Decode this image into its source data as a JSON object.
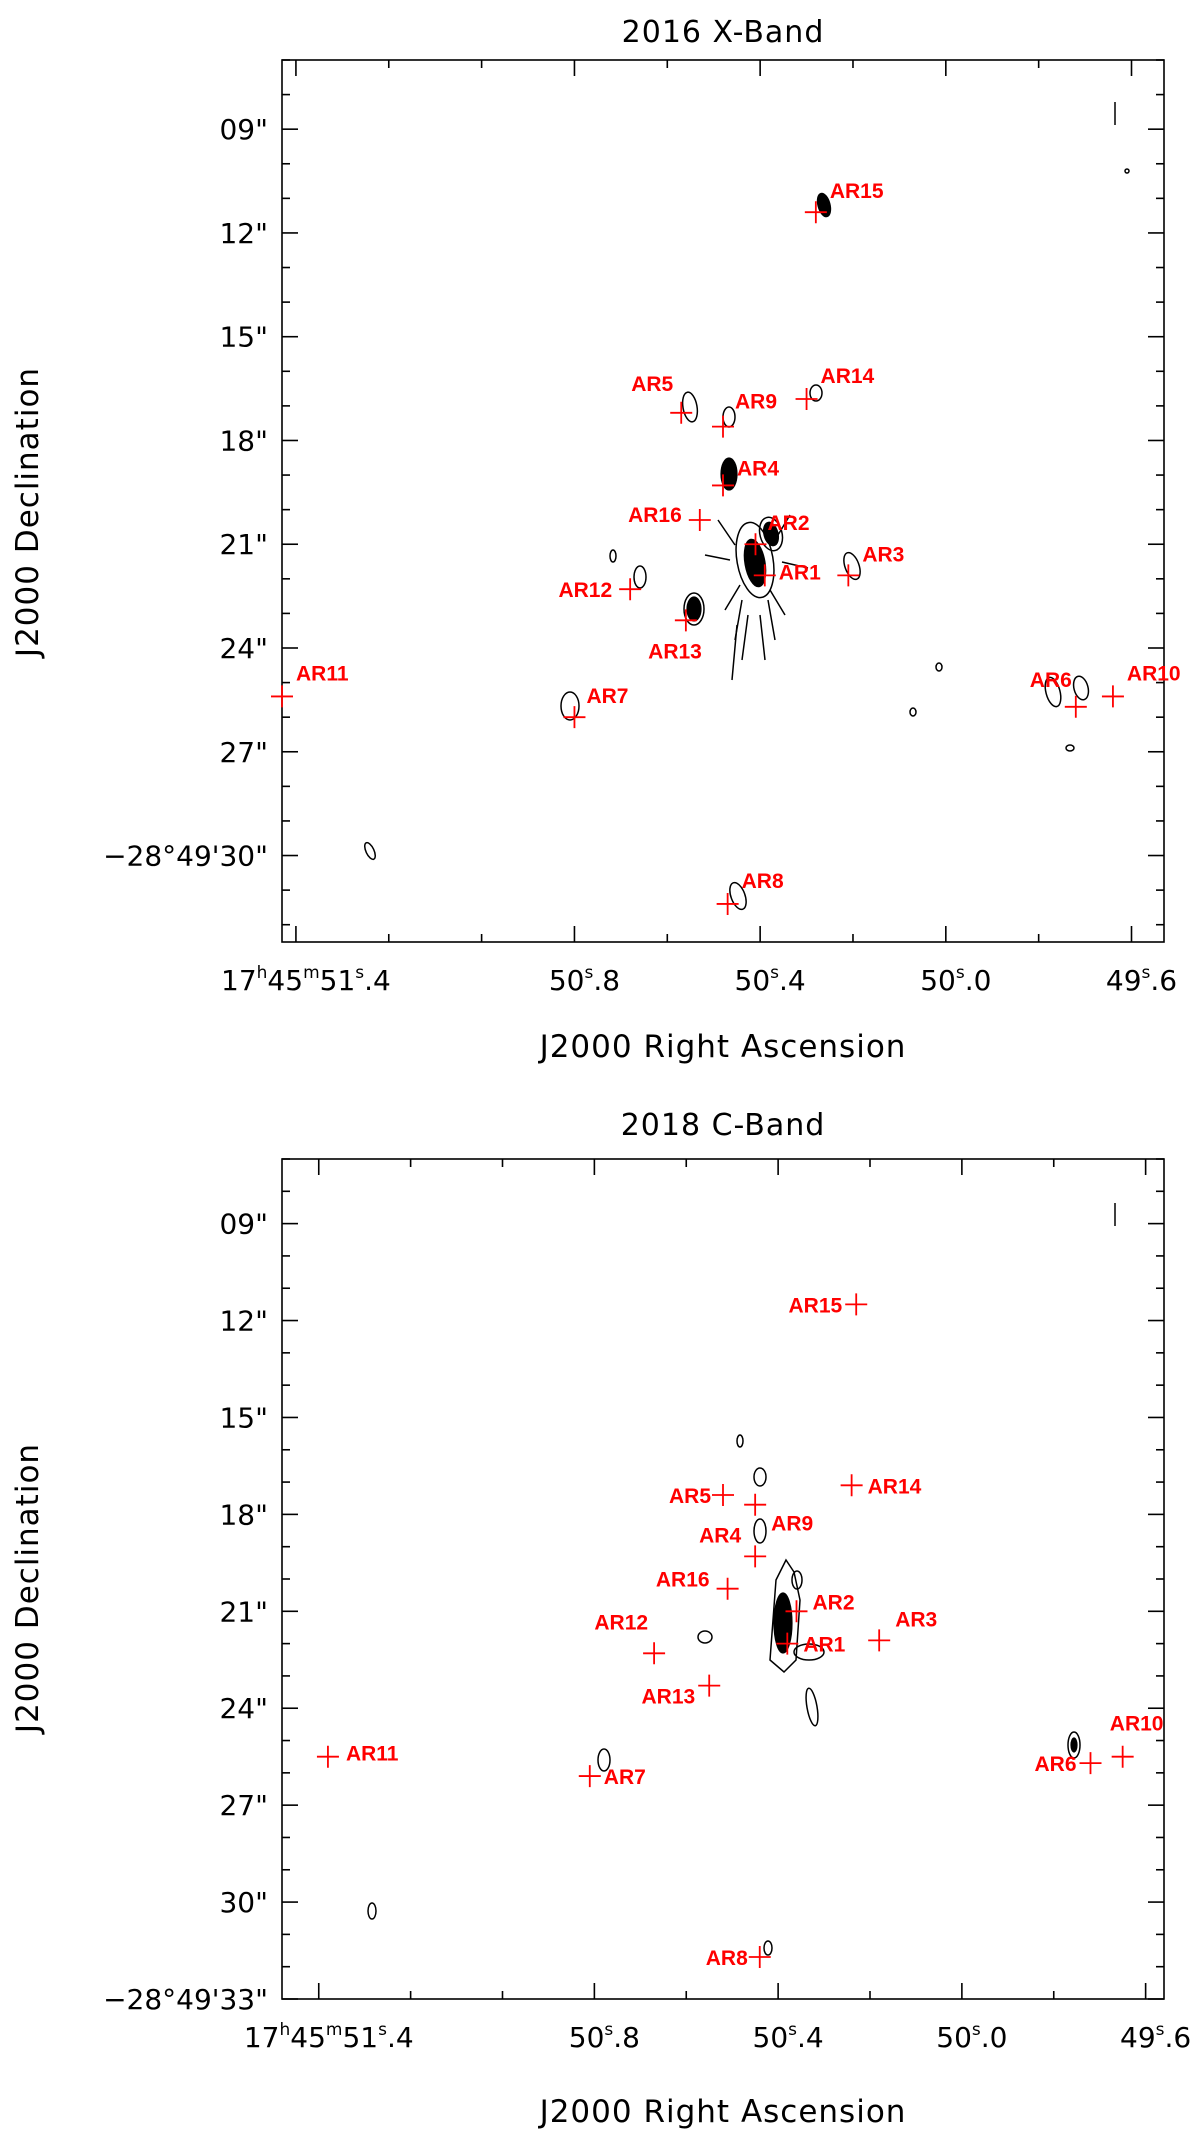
{
  "chart_data": [
    {
      "type": "scatter",
      "title": "2016 X-Band",
      "xlabel": "J2000 Right Ascension",
      "ylabel": "J2000 Declination",
      "xlim": [
        51.43,
        49.53
      ],
      "ylim": [
        32.5,
        7.0
      ],
      "xticks": [
        {
          "value": 51.4,
          "label": {
            "h": "17",
            "m": "45",
            "s": "51",
            "f": ".4"
          }
        },
        {
          "value": 50.8,
          "label": {
            "h": "",
            "m": "",
            "s": "50",
            "f": ".8"
          }
        },
        {
          "value": 50.4,
          "label": {
            "h": "",
            "m": "",
            "s": "50",
            "f": ".4"
          }
        },
        {
          "value": 50.0,
          "label": {
            "h": "",
            "m": "",
            "s": "50",
            "f": ".0"
          }
        },
        {
          "value": 49.6,
          "label": {
            "h": "",
            "m": "",
            "s": "49",
            "f": ".6"
          }
        }
      ],
      "xminor": [
        51.2,
        51.0,
        50.6,
        50.2,
        49.8
      ],
      "yticks": [
        {
          "value": 9,
          "label": "09\""
        },
        {
          "value": 12,
          "label": "12\""
        },
        {
          "value": 15,
          "label": "15\""
        },
        {
          "value": 18,
          "label": "18\""
        },
        {
          "value": 21,
          "label": "21\""
        },
        {
          "value": 24,
          "label": "24\""
        },
        {
          "value": 27,
          "label": "27\""
        },
        {
          "value": 30,
          "label": "−28°49'30\""
        }
      ],
      "sources": [
        {
          "name": "AR1",
          "ra": 50.39,
          "dec": 21.9,
          "dx": 14,
          "dy": 4,
          "anchor": "start"
        },
        {
          "name": "AR2",
          "ra": 50.41,
          "dec": 21.0,
          "dx": 12,
          "dy": -14,
          "anchor": "start"
        },
        {
          "name": "AR3",
          "ra": 50.21,
          "dec": 21.9,
          "dx": 14,
          "dy": -14,
          "anchor": "start"
        },
        {
          "name": "AR4",
          "ra": 50.48,
          "dec": 19.3,
          "dx": 14,
          "dy": -10,
          "anchor": "start"
        },
        {
          "name": "AR5",
          "ra": 50.57,
          "dec": 17.2,
          "dx": -8,
          "dy": -22,
          "anchor": "end"
        },
        {
          "name": "AR6",
          "ra": 49.72,
          "dec": 25.7,
          "dx": -4,
          "dy": -20,
          "anchor": "end"
        },
        {
          "name": "AR7",
          "ra": 50.8,
          "dec": 26.0,
          "dx": 12,
          "dy": -14,
          "anchor": "start"
        },
        {
          "name": "AR8",
          "ra": 50.47,
          "dec": 31.4,
          "dx": 14,
          "dy": -16,
          "anchor": "start"
        },
        {
          "name": "AR9",
          "ra": 50.48,
          "dec": 17.6,
          "dx": 12,
          "dy": -18,
          "anchor": "start"
        },
        {
          "name": "AR10",
          "ra": 49.64,
          "dec": 25.4,
          "dx": 14,
          "dy": -16,
          "anchor": "start"
        },
        {
          "name": "AR11",
          "ra": 51.43,
          "dec": 25.4,
          "dx": 14,
          "dy": -16,
          "anchor": "start"
        },
        {
          "name": "AR12",
          "ra": 50.68,
          "dec": 22.3,
          "dx": -18,
          "dy": 8,
          "anchor": "end"
        },
        {
          "name": "AR13",
          "ra": 50.56,
          "dec": 23.2,
          "dx": 16,
          "dy": 38,
          "anchor": "end"
        },
        {
          "name": "AR14",
          "ra": 50.3,
          "dec": 16.8,
          "dx": 14,
          "dy": -16,
          "anchor": "start"
        },
        {
          "name": "AR15",
          "ra": 50.28,
          "dec": 11.4,
          "dx": 14,
          "dy": -14,
          "anchor": "start"
        },
        {
          "name": "AR16",
          "ra": 50.53,
          "dec": 20.3,
          "dx": -18,
          "dy": 2,
          "anchor": "end"
        }
      ]
    },
    {
      "type": "scatter",
      "title": "2018 C-Band",
      "xlabel": "J2000 Right Ascension",
      "ylabel": "J2000 Declination",
      "xlim": [
        51.48,
        49.56
      ],
      "ylim": [
        33.0,
        7.0
      ],
      "xticks": [
        {
          "value": 51.4,
          "label": {
            "h": "17",
            "m": "45",
            "s": "51",
            "f": ".4"
          }
        },
        {
          "value": 50.8,
          "label": {
            "h": "",
            "m": "",
            "s": "50",
            "f": ".8"
          }
        },
        {
          "value": 50.4,
          "label": {
            "h": "",
            "m": "",
            "s": "50",
            "f": ".4"
          }
        },
        {
          "value": 50.0,
          "label": {
            "h": "",
            "m": "",
            "s": "50",
            "f": ".0"
          }
        },
        {
          "value": 49.6,
          "label": {
            "h": "",
            "m": "",
            "s": "49",
            "f": ".6"
          }
        }
      ],
      "xminor": [
        51.2,
        51.0,
        50.6,
        50.2,
        49.8
      ],
      "yticks": [
        {
          "value": 9,
          "label": "09\""
        },
        {
          "value": 12,
          "label": "12\""
        },
        {
          "value": 15,
          "label": "15\""
        },
        {
          "value": 18,
          "label": "18\""
        },
        {
          "value": 21,
          "label": "21\""
        },
        {
          "value": 24,
          "label": "24\""
        },
        {
          "value": 27,
          "label": "27\""
        },
        {
          "value": 30,
          "label": "30\""
        },
        {
          "value": 33,
          "label": "−28°49'33\""
        }
      ],
      "sources": [
        {
          "name": "AR1",
          "ra": 50.38,
          "dec": 22.0,
          "dx": 16,
          "dy": 8,
          "anchor": "start"
        },
        {
          "name": "AR2",
          "ra": 50.36,
          "dec": 21.0,
          "dx": 16,
          "dy": -2,
          "anchor": "start"
        },
        {
          "name": "AR3",
          "ra": 50.18,
          "dec": 21.9,
          "dx": 16,
          "dy": -14,
          "anchor": "start"
        },
        {
          "name": "AR4",
          "ra": 50.45,
          "dec": 19.3,
          "dx": -14,
          "dy": -14,
          "anchor": "end"
        },
        {
          "name": "AR5",
          "ra": 50.52,
          "dec": 17.4,
          "dx": -12,
          "dy": 8,
          "anchor": "end"
        },
        {
          "name": "AR6",
          "ra": 49.72,
          "dec": 25.7,
          "dx": -14,
          "dy": 8,
          "anchor": "end"
        },
        {
          "name": "AR7",
          "ra": 50.81,
          "dec": 26.1,
          "dx": 14,
          "dy": 8,
          "anchor": "start"
        },
        {
          "name": "AR8",
          "ra": 50.44,
          "dec": 31.7,
          "dx": -12,
          "dy": 8,
          "anchor": "end"
        },
        {
          "name": "AR9",
          "ra": 50.45,
          "dec": 17.7,
          "dx": 16,
          "dy": 26,
          "anchor": "start"
        },
        {
          "name": "AR10",
          "ra": 49.65,
          "dec": 25.5,
          "dx": 14,
          "dy": -26,
          "anchor": "middle"
        },
        {
          "name": "AR11",
          "ra": 51.38,
          "dec": 25.5,
          "dx": 18,
          "dy": 4,
          "anchor": "start"
        },
        {
          "name": "AR12",
          "ra": 50.67,
          "dec": 22.3,
          "dx": -6,
          "dy": -24,
          "anchor": "end"
        },
        {
          "name": "AR13",
          "ra": 50.55,
          "dec": 23.3,
          "dx": -14,
          "dy": 18,
          "anchor": "end"
        },
        {
          "name": "AR14",
          "ra": 50.24,
          "dec": 17.1,
          "dx": 16,
          "dy": 8,
          "anchor": "start"
        },
        {
          "name": "AR15",
          "ra": 50.23,
          "dec": 11.5,
          "dx": -14,
          "dy": 8,
          "anchor": "end"
        },
        {
          "name": "AR16",
          "ra": 50.51,
          "dec": 20.3,
          "dx": -18,
          "dy": -2,
          "anchor": "end"
        }
      ]
    }
  ]
}
